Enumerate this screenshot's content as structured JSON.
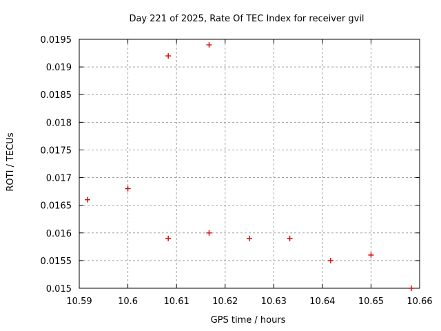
{
  "chart_data": {
    "type": "scatter",
    "title": "Day 221 of 2025, Rate Of TEC Index for receiver gvil",
    "xlabel": "GPS time / hours",
    "ylabel": "ROTI / TECUs",
    "xlim": [
      10.59,
      10.66
    ],
    "ylim": [
      0.015,
      0.0195
    ],
    "xticks": [
      10.59,
      10.6,
      10.61,
      10.62,
      10.63,
      10.64,
      10.65,
      10.66
    ],
    "xtick_labels": [
      "10.59",
      "10.6",
      "10.61",
      "10.62",
      "10.63",
      "10.64",
      "10.65",
      "10.66"
    ],
    "yticks": [
      0.015,
      0.0155,
      0.016,
      0.0165,
      0.017,
      0.0175,
      0.018,
      0.0185,
      0.019,
      0.0195
    ],
    "ytick_labels": [
      "0.015",
      "0.0155",
      "0.016",
      "0.0165",
      "0.017",
      "0.0175",
      "0.018",
      "0.0185",
      "0.019",
      "0.0195"
    ],
    "grid": true,
    "legend": "none",
    "marker": "plus",
    "marker_color": "#dd0000",
    "grid_color": "#9e9e9e",
    "axis_color": "#000000",
    "points": [
      {
        "x": 10.5917,
        "y": 0.0166
      },
      {
        "x": 10.6,
        "y": 0.0168
      },
      {
        "x": 10.6083,
        "y": 0.0192
      },
      {
        "x": 10.6083,
        "y": 0.0159
      },
      {
        "x": 10.6167,
        "y": 0.0194
      },
      {
        "x": 10.6167,
        "y": 0.016
      },
      {
        "x": 10.625,
        "y": 0.0159
      },
      {
        "x": 10.6333,
        "y": 0.0159
      },
      {
        "x": 10.6417,
        "y": 0.0155
      },
      {
        "x": 10.65,
        "y": 0.0156
      },
      {
        "x": 10.6583,
        "y": 0.015
      }
    ]
  }
}
